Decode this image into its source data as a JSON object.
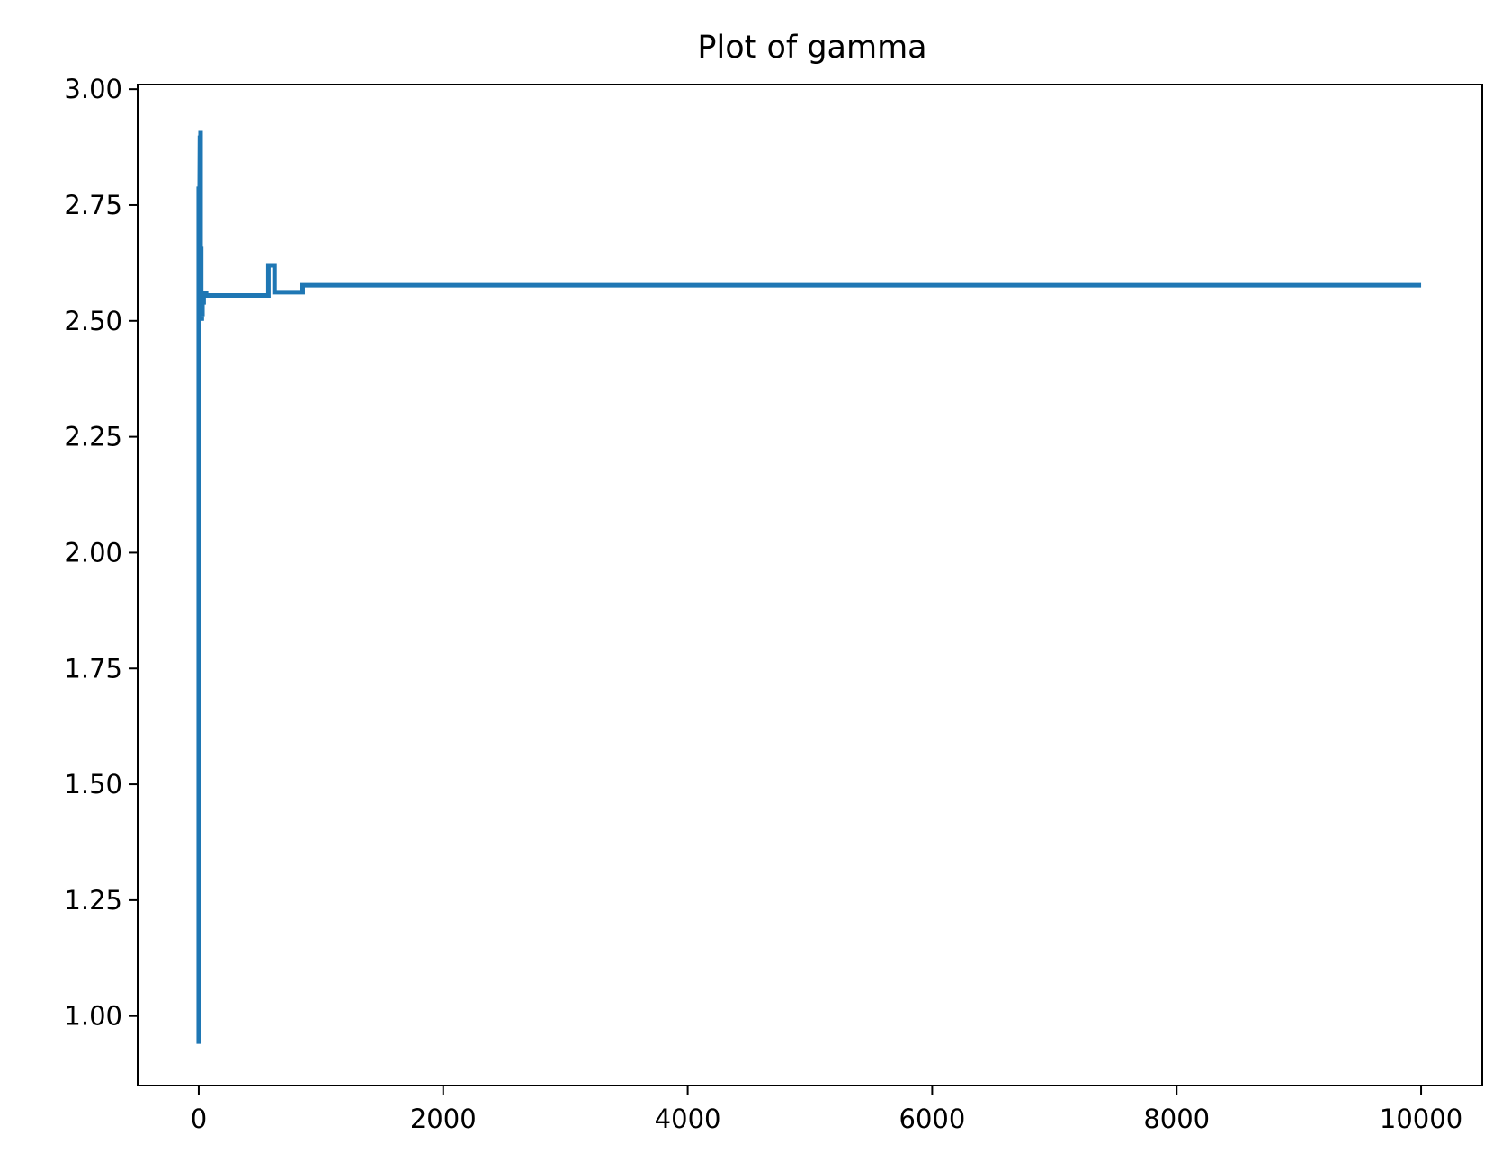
{
  "chart_data": {
    "type": "line",
    "title": "Plot of gamma",
    "xlabel": "",
    "ylabel": "",
    "xlim": [
      -500,
      10500
    ],
    "ylim": [
      0.85,
      3.01
    ],
    "x_ticks": [
      0,
      2000,
      4000,
      6000,
      8000,
      10000
    ],
    "x_tick_labels": [
      "0",
      "2000",
      "4000",
      "6000",
      "8000",
      "10000"
    ],
    "y_ticks": [
      1.0,
      1.25,
      1.5,
      1.75,
      2.0,
      2.25,
      2.5,
      2.75,
      3.0
    ],
    "y_tick_labels": [
      "1.00",
      "1.25",
      "1.50",
      "1.75",
      "2.00",
      "2.25",
      "2.50",
      "2.75",
      "3.00"
    ],
    "grid": false,
    "legend": "none",
    "series": [
      {
        "color": "#1f77b4",
        "x": [
          0,
          0,
          0,
          5,
          5,
          10,
          10,
          15,
          15,
          20,
          20,
          25,
          25,
          30,
          30,
          40,
          40,
          60,
          60,
          80,
          80,
          570,
          570,
          620,
          620,
          850,
          850,
          10000
        ],
        "y": [
          2.51,
          0.94,
          2.79,
          2.52,
          2.65,
          2.9,
          2.61,
          2.91,
          2.55,
          2.66,
          2.53,
          2.5,
          2.55,
          2.51,
          2.54,
          2.54,
          2.56,
          2.56,
          2.555,
          2.555,
          2.555,
          2.555,
          2.62,
          2.62,
          2.562,
          2.562,
          2.577,
          2.577
        ]
      }
    ]
  }
}
